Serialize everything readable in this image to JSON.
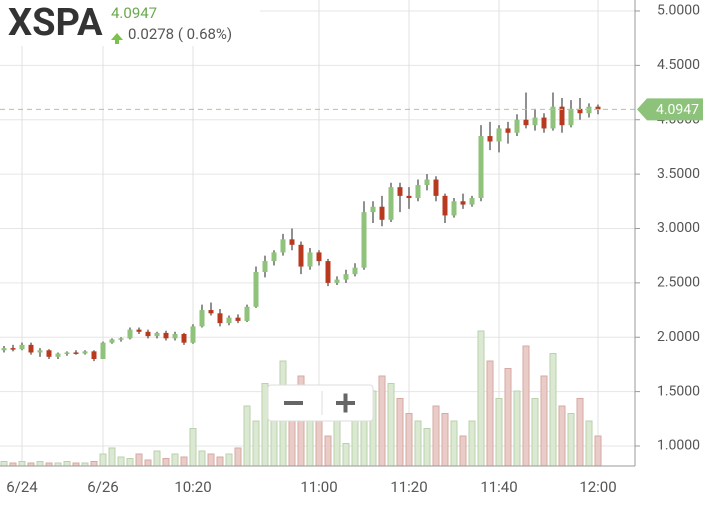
{
  "chart_data": {
    "type": "candlestick",
    "title": "XSPA",
    "last": 4.0947,
    "change": "0.0278 ( 0.68%)",
    "categories": [
      null,
      null,
      "6/24",
      null,
      null,
      null,
      null,
      null,
      null,
      null,
      null,
      "6/26",
      null,
      null,
      null,
      null,
      null,
      null,
      null,
      null,
      null,
      "10:20",
      null,
      null,
      null,
      null,
      null,
      null,
      null,
      null,
      null,
      null,
      null,
      null,
      null,
      "11:00",
      null,
      null,
      null,
      null,
      null,
      null,
      null,
      null,
      null,
      "11:20",
      null,
      null,
      null,
      null,
      null,
      null,
      null,
      null,
      null,
      "11:40",
      null,
      null,
      null,
      null,
      null,
      null,
      null,
      null,
      null,
      null,
      "12:00"
    ],
    "candles": [
      [
        1.88,
        1.92,
        1.86,
        1.9
      ],
      [
        1.9,
        1.93,
        1.87,
        1.89
      ],
      [
        1.89,
        1.95,
        1.88,
        1.93
      ],
      [
        1.93,
        1.95,
        1.84,
        1.86
      ],
      [
        1.86,
        1.9,
        1.82,
        1.88
      ],
      [
        1.88,
        1.89,
        1.8,
        1.82
      ],
      [
        1.82,
        1.86,
        1.8,
        1.85
      ],
      [
        1.85,
        1.87,
        1.83,
        1.86
      ],
      [
        1.86,
        1.88,
        1.84,
        1.85
      ],
      [
        1.85,
        1.88,
        1.84,
        1.87
      ],
      [
        1.87,
        1.88,
        1.78,
        1.8
      ],
      [
        1.8,
        1.96,
        1.8,
        1.95
      ],
      [
        1.95,
        1.99,
        1.94,
        1.98
      ],
      [
        1.98,
        2.0,
        1.96,
        1.99
      ],
      [
        1.99,
        2.09,
        1.98,
        2.07
      ],
      [
        2.07,
        2.09,
        2.03,
        2.05
      ],
      [
        2.05,
        2.07,
        1.99,
        2.01
      ],
      [
        2.01,
        2.05,
        1.99,
        2.04
      ],
      [
        2.04,
        2.06,
        1.97,
        1.99
      ],
      [
        1.99,
        2.05,
        1.97,
        2.03
      ],
      [
        2.03,
        2.04,
        1.93,
        1.95
      ],
      [
        1.95,
        2.12,
        1.94,
        2.1
      ],
      [
        2.1,
        2.3,
        2.09,
        2.25
      ],
      [
        2.25,
        2.32,
        2.2,
        2.22
      ],
      [
        2.22,
        2.26,
        2.1,
        2.13
      ],
      [
        2.13,
        2.2,
        2.11,
        2.18
      ],
      [
        2.18,
        2.21,
        2.13,
        2.15
      ],
      [
        2.15,
        2.3,
        2.14,
        2.28
      ],
      [
        2.28,
        2.65,
        2.27,
        2.6
      ],
      [
        2.6,
        2.75,
        2.55,
        2.7
      ],
      [
        2.7,
        2.8,
        2.66,
        2.78
      ],
      [
        2.78,
        2.95,
        2.75,
        2.9
      ],
      [
        2.9,
        3.0,
        2.8,
        2.85
      ],
      [
        2.85,
        2.88,
        2.58,
        2.65
      ],
      [
        2.65,
        2.82,
        2.62,
        2.78
      ],
      [
        2.78,
        2.8,
        2.66,
        2.7
      ],
      [
        2.7,
        2.72,
        2.47,
        2.5
      ],
      [
        2.5,
        2.56,
        2.48,
        2.53
      ],
      [
        2.53,
        2.62,
        2.5,
        2.58
      ],
      [
        2.58,
        2.68,
        2.56,
        2.64
      ],
      [
        2.64,
        3.25,
        2.62,
        3.15
      ],
      [
        3.15,
        3.25,
        3.05,
        3.2
      ],
      [
        3.2,
        3.3,
        3.02,
        3.08
      ],
      [
        3.08,
        3.42,
        3.06,
        3.38
      ],
      [
        3.38,
        3.42,
        3.15,
        3.3
      ],
      [
        3.3,
        3.38,
        3.18,
        3.28
      ],
      [
        3.28,
        3.45,
        3.25,
        3.4
      ],
      [
        3.4,
        3.5,
        3.35,
        3.45
      ],
      [
        3.45,
        3.48,
        3.25,
        3.3
      ],
      [
        3.3,
        3.32,
        3.05,
        3.12
      ],
      [
        3.12,
        3.28,
        3.1,
        3.25
      ],
      [
        3.25,
        3.32,
        3.18,
        3.22
      ],
      [
        3.22,
        3.3,
        3.2,
        3.28
      ],
      [
        3.28,
        3.95,
        3.25,
        3.85
      ],
      [
        3.85,
        3.98,
        3.72,
        3.8
      ],
      [
        3.8,
        3.95,
        3.7,
        3.92
      ],
      [
        3.92,
        3.98,
        3.78,
        3.88
      ],
      [
        3.88,
        4.05,
        3.85,
        4.0
      ],
      [
        4.0,
        4.25,
        3.92,
        3.95
      ],
      [
        3.95,
        4.1,
        3.9,
        4.02
      ],
      [
        4.02,
        4.06,
        3.88,
        3.92
      ],
      [
        3.92,
        4.25,
        3.9,
        4.12
      ],
      [
        4.12,
        4.2,
        3.88,
        3.95
      ],
      [
        3.95,
        4.18,
        3.93,
        4.1
      ],
      [
        4.1,
        4.2,
        4.0,
        4.06
      ],
      [
        4.06,
        4.15,
        4.02,
        4.12
      ],
      [
        4.12,
        4.14,
        4.05,
        4.0947
      ]
    ],
    "volume": [
      3,
      2,
      3,
      2,
      3,
      2,
      2,
      3,
      2,
      2,
      3,
      8,
      12,
      6,
      5,
      8,
      4,
      10,
      5,
      8,
      6,
      25,
      10,
      8,
      6,
      8,
      12,
      40,
      30,
      55,
      45,
      70,
      50,
      60,
      30,
      45,
      20,
      30,
      15,
      35,
      40,
      50,
      60,
      55,
      45,
      35,
      30,
      25,
      40,
      35,
      30,
      20,
      30,
      90,
      70,
      45,
      65,
      50,
      80,
      45,
      60,
      75,
      40,
      35,
      45,
      30,
      20
    ],
    "volume_lim": [
      0,
      100
    ],
    "up_color": "#8fc27a",
    "down_color": "#b9391f",
    "ylim": [
      0.816,
      5.101
    ],
    "yticks": [
      {
        "value": 1,
        "label": "1.0000"
      },
      {
        "value": 1.5,
        "label": "1.5000"
      },
      {
        "value": 2,
        "label": "2.0000"
      },
      {
        "value": 2.5,
        "label": "2.5000"
      },
      {
        "value": 3,
        "label": "3.0000"
      },
      {
        "value": 3.5,
        "label": "3.5000"
      },
      {
        "value": 4,
        "label": "4.0000"
      },
      {
        "value": 4.5,
        "label": "4.5000"
      },
      {
        "value": 5,
        "label": "5.0000"
      }
    ],
    "grid": true
  }
}
